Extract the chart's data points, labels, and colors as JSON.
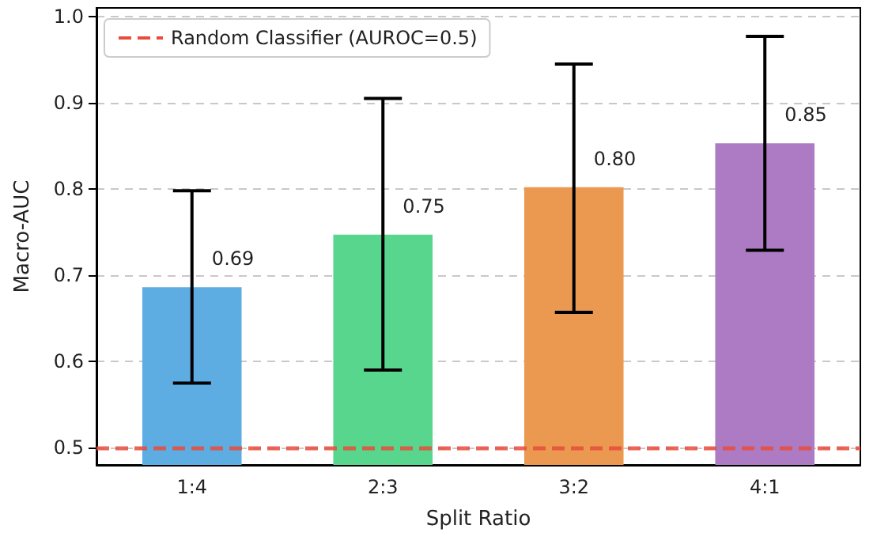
{
  "chart_data": {
    "type": "bar",
    "xlabel": "Split Ratio",
    "ylabel": "Macro-AUC",
    "categories": [
      "1:4",
      "2:3",
      "3:2",
      "4:1"
    ],
    "values": [
      0.686,
      0.747,
      0.802,
      0.853
    ],
    "colors": [
      "#5dade2",
      "#58d68d",
      "#eb9950",
      "#ad7bc4"
    ],
    "value_labels": [
      "0.69",
      "0.75",
      "0.80",
      "0.85"
    ],
    "errors": [
      [
        0.575,
        0.798
      ],
      [
        0.59,
        0.905
      ],
      [
        0.657,
        0.945
      ],
      [
        0.729,
        0.977
      ]
    ],
    "ylim": [
      0.48,
      1.01
    ],
    "yticks": [
      {
        "value": 0.5,
        "label": "0.5"
      },
      {
        "value": 0.6,
        "label": "0.6"
      },
      {
        "value": 0.7,
        "label": "0.7"
      },
      {
        "value": 0.8,
        "label": "0.8"
      },
      {
        "value": 0.9,
        "label": "0.9"
      },
      {
        "value": 1.0,
        "label": "1.0"
      }
    ],
    "grid": "y",
    "legend": "top left",
    "ref_lines": [
      {
        "axis": "y",
        "value": 0.5,
        "label": "Random Classifier (AUROC=0.5)",
        "color": "#e74c3c",
        "line_style": "dashed"
      }
    ]
  }
}
